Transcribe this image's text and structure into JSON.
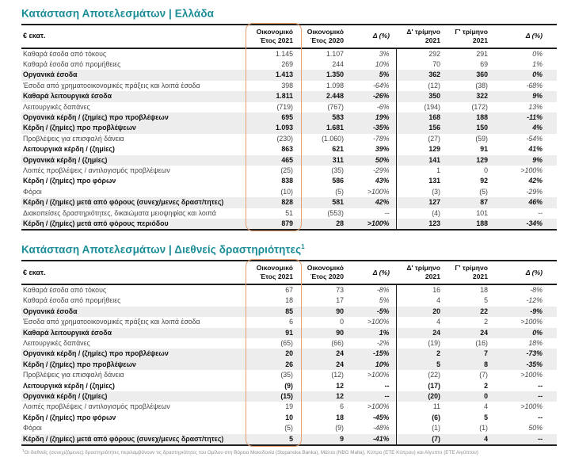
{
  "colors": {
    "accent_teal": "#1A8C96",
    "highlight_orange": "#E8A071",
    "row_shade": "#EDEDED",
    "rule_dark": "#1F1F1F",
    "footnote_gray": "#8F8F8F"
  },
  "tables": [
    {
      "title": "Κατάσταση Αποτελεσμάτων | Ελλάδα",
      "title_sup": "",
      "unit_label": "€ εκατ.",
      "columns": [
        {
          "id": "fy2021",
          "line1": "Οικονομικό",
          "line2": "Έτος 2021",
          "italic": false,
          "divider_left": false,
          "highlighted": true
        },
        {
          "id": "fy2020",
          "line1": "Οικονομικό",
          "line2": "Έτος 2020",
          "italic": false,
          "divider_left": false,
          "highlighted": false
        },
        {
          "id": "delta-annual",
          "line1": "Δ (%)",
          "line2": "",
          "italic": true,
          "divider_left": false,
          "highlighted": false
        },
        {
          "id": "q4-2021",
          "line1": "Δ' τρίμηνο",
          "line2": "2021",
          "italic": false,
          "divider_left": true,
          "highlighted": false
        },
        {
          "id": "q3-2021",
          "line1": "Γ' τρίμηνο",
          "line2": "2021",
          "italic": false,
          "divider_left": false,
          "highlighted": false
        },
        {
          "id": "delta-quarter",
          "line1": "Δ (%)",
          "line2": "",
          "italic": true,
          "divider_left": false,
          "highlighted": false
        }
      ],
      "rows": [
        {
          "label": "Καθαρά έσοδα από τόκους",
          "values": [
            "1.145",
            "1.107",
            "3%",
            "292",
            "291",
            "0%"
          ],
          "bold": false,
          "shaded": false
        },
        {
          "label": "Καθαρά έσοδα από προμήθειες",
          "values": [
            "269",
            "244",
            "10%",
            "70",
            "69",
            "1%"
          ],
          "bold": false,
          "shaded": false
        },
        {
          "label": "Οργανικά έσοδα",
          "values": [
            "1.413",
            "1.350",
            "5%",
            "362",
            "360",
            "0%"
          ],
          "bold": true,
          "shaded": true
        },
        {
          "label": "Έσοδα από χρηματοοικονομικές πράξεις και λοιπά έσοδα",
          "values": [
            "398",
            "1.098",
            "-64%",
            "(12)",
            "(38)",
            "-68%"
          ],
          "bold": false,
          "shaded": false
        },
        {
          "label": "Καθαρά λειτουργικά έσοδα",
          "values": [
            "1.811",
            "2.448",
            "-26%",
            "350",
            "322",
            "9%"
          ],
          "bold": true,
          "shaded": true
        },
        {
          "label": "Λειτουργικές δαπάνες",
          "values": [
            "(719)",
            "(767)",
            "-6%",
            "(194)",
            "(172)",
            "13%"
          ],
          "bold": false,
          "shaded": false
        },
        {
          "label": "Οργανικά κέρδη / (ζημίες) προ προβλέψεων",
          "values": [
            "695",
            "583",
            "19%",
            "168",
            "188",
            "-11%"
          ],
          "bold": true,
          "shaded": true
        },
        {
          "label": "Κέρδη / (ζημίες) προ προβλέψεων",
          "values": [
            "1.093",
            "1.681",
            "-35%",
            "156",
            "150",
            "4%"
          ],
          "bold": true,
          "shaded": true
        },
        {
          "label": "Προβλέψεις για επισφαλή δάνεια",
          "values": [
            "(230)",
            "(1.060)",
            "-78%",
            "(27)",
            "(59)",
            "-54%"
          ],
          "bold": false,
          "shaded": false
        },
        {
          "label": "Λειτουργικά κέρδη / (ζημίες)",
          "values": [
            "863",
            "621",
            "39%",
            "129",
            "91",
            "41%"
          ],
          "bold": true,
          "shaded": false
        },
        {
          "label": "Οργανικά κέρδη / (ζημίες)",
          "values": [
            "465",
            "311",
            "50%",
            "141",
            "129",
            "9%"
          ],
          "bold": true,
          "shaded": true
        },
        {
          "label": "Λοιπές προβλέψεις / αντιλογισμός προβλέψεων",
          "values": [
            "(25)",
            "(35)",
            "-29%",
            "1",
            "0",
            ">100%"
          ],
          "bold": false,
          "shaded": false
        },
        {
          "label": "Κέρδη / (ζημίες) προ φόρων",
          "values": [
            "838",
            "586",
            "43%",
            "131",
            "92",
            "42%"
          ],
          "bold": true,
          "shaded": false
        },
        {
          "label": "Φόροι",
          "values": [
            "(10)",
            "(5)",
            ">100%",
            "(3)",
            "(5)",
            "-29%"
          ],
          "bold": false,
          "shaded": false
        },
        {
          "label": "Κέρδη / (ζημίες) μετά από φόρους (συνεχ/μενες δραστ/τητες)",
          "values": [
            "828",
            "581",
            "42%",
            "127",
            "87",
            "46%"
          ],
          "bold": true,
          "shaded": true
        },
        {
          "label": "Διακοπείσες δραστηριότητες, δικαιώματα μειοψηφίας και λοιπά",
          "values": [
            "51",
            "(553)",
            "--",
            "(4)",
            "101",
            "--"
          ],
          "bold": false,
          "shaded": false
        },
        {
          "label": "Κέρδη / (ζημίες) μετά από φόρους περιόδου",
          "values": [
            "879",
            "28",
            ">100%",
            "123",
            "188",
            "-34%"
          ],
          "bold": true,
          "shaded": true
        }
      ]
    },
    {
      "title": "Κατάσταση Αποτελεσμάτων | Διεθνείς δραστηριότητες",
      "title_sup": "1",
      "unit_label": "€ εκατ.",
      "columns": [
        {
          "id": "fy2021",
          "line1": "Οικονομικό",
          "line2": "Έτος 2021",
          "italic": false,
          "divider_left": false,
          "highlighted": true
        },
        {
          "id": "fy2020",
          "line1": "Οικονομικό",
          "line2": "Έτος 2020",
          "italic": false,
          "divider_left": false,
          "highlighted": false
        },
        {
          "id": "delta-annual",
          "line1": "Δ (%)",
          "line2": "",
          "italic": true,
          "divider_left": false,
          "highlighted": false
        },
        {
          "id": "q4-2021",
          "line1": "Δ' τρίμηνο",
          "line2": "2021",
          "italic": false,
          "divider_left": true,
          "highlighted": false
        },
        {
          "id": "q3-2021",
          "line1": "Γ' τρίμηνο",
          "line2": "2021",
          "italic": false,
          "divider_left": false,
          "highlighted": false
        },
        {
          "id": "delta-quarter",
          "line1": "Δ (%)",
          "line2": "",
          "italic": true,
          "divider_left": false,
          "highlighted": false
        }
      ],
      "rows": [
        {
          "label": "Καθαρά έσοδα από τόκους",
          "values": [
            "67",
            "73",
            "-8%",
            "16",
            "18",
            "-8%"
          ],
          "bold": false,
          "shaded": false
        },
        {
          "label": "Καθαρά έσοδα από προμήθειες",
          "values": [
            "18",
            "17",
            "5%",
            "4",
            "5",
            "-12%"
          ],
          "bold": false,
          "shaded": false
        },
        {
          "label": "Οργανικά έσοδα",
          "values": [
            "85",
            "90",
            "-5%",
            "20",
            "22",
            "-9%"
          ],
          "bold": true,
          "shaded": true
        },
        {
          "label": "Έσοδα από χρηματοοικονομικές πράξεις και λοιπά έσοδα",
          "values": [
            "6",
            "0",
            ">100%",
            "4",
            "2",
            ">100%"
          ],
          "bold": false,
          "shaded": false
        },
        {
          "label": "Καθαρά λειτουργικά έσοδα",
          "values": [
            "91",
            "90",
            "1%",
            "24",
            "24",
            "0%"
          ],
          "bold": true,
          "shaded": true
        },
        {
          "label": "Λειτουργικές δαπάνες",
          "values": [
            "(65)",
            "(66)",
            "-2%",
            "(19)",
            "(16)",
            "18%"
          ],
          "bold": false,
          "shaded": false
        },
        {
          "label": "Οργανικά κέρδη / (ζημίες) προ προβλέψεων",
          "values": [
            "20",
            "24",
            "-15%",
            "2",
            "7",
            "-73%"
          ],
          "bold": true,
          "shaded": true
        },
        {
          "label": "Κέρδη / (ζημίες) προ προβλέψεων",
          "values": [
            "26",
            "24",
            "10%",
            "5",
            "8",
            "-35%"
          ],
          "bold": true,
          "shaded": true
        },
        {
          "label": "Προβλέψεις για επισφαλή δάνεια",
          "values": [
            "(35)",
            "(12)",
            ">100%",
            "(22)",
            "(7)",
            ">100%"
          ],
          "bold": false,
          "shaded": false
        },
        {
          "label": "Λειτουργικά κέρδη / (ζημίες)",
          "values": [
            "(9)",
            "12",
            "--",
            "(17)",
            "2",
            "--"
          ],
          "bold": true,
          "shaded": false
        },
        {
          "label": "Οργανικά κέρδη / (ζημίες)",
          "values": [
            "(15)",
            "12",
            "--",
            "(20)",
            "0",
            "--"
          ],
          "bold": true,
          "shaded": true
        },
        {
          "label": "Λοιπές προβλέψεις / αντιλογισμός προβλέψεων",
          "values": [
            "19",
            "6",
            ">100%",
            "11",
            "4",
            ">100%"
          ],
          "bold": false,
          "shaded": false
        },
        {
          "label": "Κέρδη / (ζημίες) προ φόρων",
          "values": [
            "10",
            "18",
            "-45%",
            "(6)",
            "5",
            "--"
          ],
          "bold": true,
          "shaded": false
        },
        {
          "label": "Φόροι",
          "values": [
            "(5)",
            "(9)",
            "-48%",
            "(1)",
            "(1)",
            "50%"
          ],
          "bold": false,
          "shaded": false
        },
        {
          "label": "Κέρδη / (ζημίες) μετά από φόρους (συνεχ/μενες δραστ/τητες)",
          "values": [
            "5",
            "9",
            "-41%",
            "(7)",
            "4",
            "--"
          ],
          "bold": true,
          "shaded": true
        }
      ]
    }
  ],
  "footnote": {
    "sup": "1",
    "text": "Οι διεθνείς (συνεχιζόμενες) δραστηριότητες περιλαμβάνουν τις δραστηριότητες του Ομίλου στη Βόρεια Μακεδονία (Stopanska Banka), Μάλτα (NBG Malta), Κύπρο (ΕΤΕ Κύπρου) και Αίγυπτο (ΕΤΕ Αιγύπτου)"
  }
}
